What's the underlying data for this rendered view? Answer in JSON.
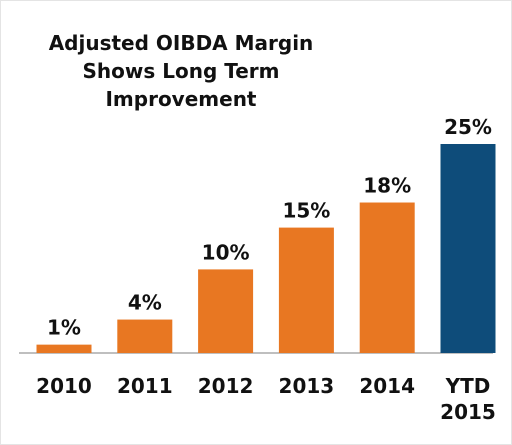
{
  "chart_data": {
    "type": "bar",
    "title": "Adjusted OIBDA Margin Shows Long Term Improvement",
    "categories": [
      "2010",
      "2011",
      "2012",
      "2013",
      "2014",
      "YTD 2015"
    ],
    "values": [
      1,
      4,
      10,
      15,
      18,
      25
    ],
    "value_labels": [
      "1%",
      "4%",
      "10%",
      "15%",
      "18%",
      "25%"
    ],
    "colors": [
      "#e87722",
      "#e87722",
      "#e87722",
      "#e87722",
      "#e87722",
      "#0e4c7a"
    ]
  }
}
